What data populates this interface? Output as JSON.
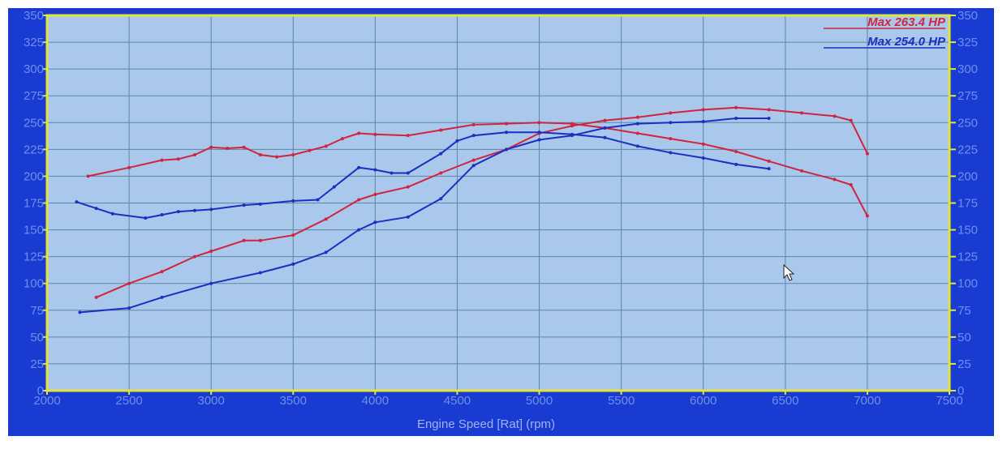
{
  "chart_data": {
    "type": "line",
    "title": "",
    "xlabel": "Engine Speed [Rat] (rpm)",
    "ylabel": "",
    "xlim": [
      2000,
      7500
    ],
    "ylim": [
      0,
      350
    ],
    "x_ticks": [
      "2000",
      "2500",
      "3000",
      "3500",
      "4000",
      "4500",
      "5000",
      "5500",
      "6000",
      "6500",
      "7000",
      "7500"
    ],
    "y_ticks_left": [
      "0",
      "25",
      "50",
      "75",
      "100",
      "125",
      "150",
      "175",
      "200",
      "225",
      "250",
      "275",
      "300",
      "325",
      "350"
    ],
    "y_ticks_right": [
      "0",
      "25",
      "50",
      "75",
      "100",
      "125",
      "150",
      "175",
      "200",
      "225",
      "250",
      "275",
      "300",
      "325",
      "350"
    ],
    "grid": true,
    "legend": [
      {
        "label": "Max 263.4 HP",
        "color": "#d0243f"
      },
      {
        "label": "Max 254.0 HP",
        "color": "#1c2fc0"
      }
    ],
    "colors": {
      "background": "#a9c8ec",
      "frame": "#1a3bd1",
      "axis": "#e2e43a",
      "grid": "#5d86a6",
      "red": "#d0243f",
      "blue": "#1c2fc0"
    },
    "series": [
      {
        "color": "#d0243f",
        "x": [
          2250,
          2500,
          2700,
          2800,
          2900,
          3000,
          3100,
          3200,
          3300,
          3400,
          3500,
          3600,
          3700,
          3800,
          3900,
          4000,
          4200,
          4400,
          4600,
          4800,
          5000,
          5200,
          5400,
          5600,
          5800,
          6000,
          6200,
          6400,
          6600,
          6800,
          6900,
          7000
        ],
        "y": [
          200,
          208,
          215,
          216,
          220,
          227,
          226,
          227,
          220,
          218,
          220,
          224,
          228,
          235,
          240,
          239,
          238,
          243,
          248,
          249,
          250,
          249,
          245,
          240,
          235,
          230,
          223,
          214,
          205,
          197,
          192,
          163
        ]
      },
      {
        "color": "#d0243f",
        "x": [
          2300,
          2500,
          2700,
          2900,
          3000,
          3200,
          3300,
          3500,
          3700,
          3900,
          4000,
          4200,
          4400,
          4600,
          4800,
          5000,
          5200,
          5400,
          5600,
          5800,
          6000,
          6200,
          6400,
          6600,
          6800,
          6900,
          7000
        ],
        "y": [
          87,
          100,
          111,
          125,
          130,
          140,
          140,
          145,
          160,
          178,
          183,
          190,
          203,
          215,
          225,
          240,
          247,
          252,
          255,
          259,
          262,
          264,
          262,
          259,
          256,
          252,
          221
        ]
      },
      {
        "color": "#1c2fc0",
        "x": [
          2180,
          2300,
          2400,
          2600,
          2700,
          2800,
          2900,
          3000,
          3200,
          3300,
          3500,
          3650,
          3750,
          3900,
          4000,
          4100,
          4200,
          4400,
          4500,
          4600,
          4800,
          5000,
          5200,
          5400,
          5600,
          5800,
          6000,
          6200,
          6400
        ],
        "y": [
          176,
          170,
          165,
          161,
          164,
          167,
          168,
          169,
          173,
          174,
          177,
          178,
          190,
          208,
          206,
          203,
          203,
          221,
          233,
          238,
          241,
          241,
          239,
          236,
          228,
          222,
          217,
          211,
          207
        ]
      },
      {
        "color": "#1c2fc0",
        "x": [
          2200,
          2500,
          2700,
          3000,
          3300,
          3500,
          3700,
          3900,
          4000,
          4200,
          4400,
          4600,
          4800,
          5000,
          5200,
          5400,
          5600,
          5800,
          6000,
          6200,
          6400
        ],
        "y": [
          73,
          77,
          87,
          100,
          110,
          118,
          129,
          150,
          157,
          162,
          179,
          210,
          225,
          234,
          238,
          245,
          249,
          250,
          251,
          254,
          254
        ]
      }
    ]
  }
}
